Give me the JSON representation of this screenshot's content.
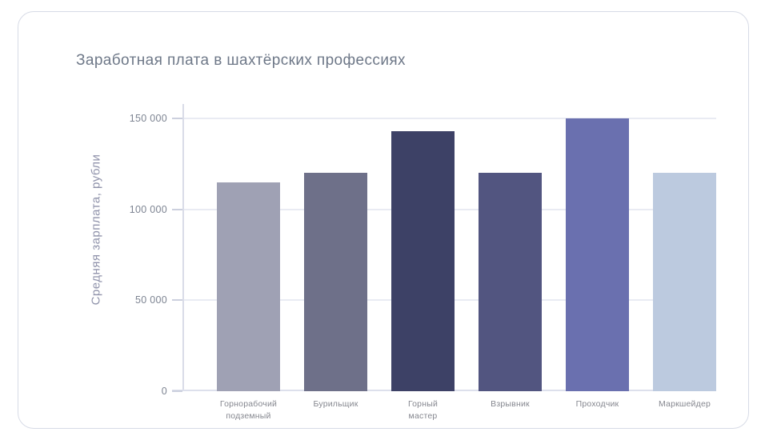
{
  "card": {
    "type": "chart-card"
  },
  "chart_data": {
    "type": "bar",
    "title": "Заработная плата в шахтёрских профессиях",
    "xlabel": "",
    "ylabel": "Средняя зарплата, рубли",
    "categories": [
      "Горнорабочий подземный",
      "Бурильщик",
      "Горный мастер",
      "Взрывник",
      "Проходчик",
      "Маркшейдер"
    ],
    "category_display_lines": [
      [
        "Горнорабочий",
        "подземный"
      ],
      [
        "Бурильщик"
      ],
      [
        "Горный",
        "мастер"
      ],
      [
        "Взрывник"
      ],
      [
        "Проходчик"
      ],
      [
        "Маркшейдер"
      ]
    ],
    "values": [
      115000,
      120000,
      143000,
      120000,
      150000,
      120000
    ],
    "bar_colors": [
      "#9fa1b4",
      "#6e7089",
      "#3d4166",
      "#525580",
      "#6a70af",
      "#bccadf"
    ],
    "ylim": [
      0,
      150000
    ],
    "yticks": [
      0,
      50000,
      100000,
      150000
    ],
    "ytick_labels": [
      "0",
      "50 000",
      "100 000",
      "150 000"
    ],
    "grid": true,
    "legend": false
  },
  "colors": {
    "background": "#ffffff",
    "card_border": "#d7dbe6",
    "grid": "#e9ebf3",
    "axis": "#d9dce8",
    "title_text": "#6e7888",
    "ylabel_text": "#8f92aa",
    "tick_text": "#7d8492",
    "category_text": "#85878f"
  }
}
